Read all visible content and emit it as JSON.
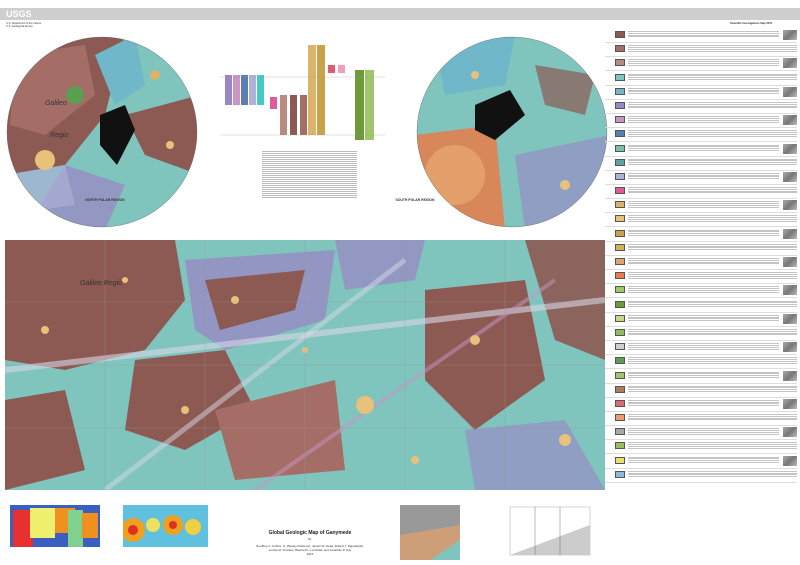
{
  "header": {
    "agency": "USGS",
    "department": "U.S. Department of the Interior",
    "survey": "U.S. Geological Survey",
    "series": "Scientific Investigations Map 3237"
  },
  "maps": {
    "north_polar_label": "NORTH POLAR REGION",
    "south_polar_label": "SOUTH POLAR REGION",
    "region_label_1": "Galileo",
    "region_label_2": "Regio",
    "main_region_label": "Galileo Regio"
  },
  "title_block": {
    "title": "Global Geologic Map of Ganymede",
    "by": "By",
    "authors_line1": "Geoffrey C. Collins, G. Wesley Patterson, James W. Head, Robert T. Pappalardo,",
    "authors_line2": "Louise M. Prockter, Baerbel K. Lucchitta, and Jonathan P. Kay",
    "year": "2014"
  },
  "colors": {
    "dark_terrain": "#8c5a52",
    "light_terrain": "#7fc4bd",
    "grooved": "#9a86c4",
    "crater": "#e8c27a",
    "palimpsest": "#e3a06a",
    "header_bar": "#cfcfcf"
  },
  "units": [
    {
      "color": "#8c5a52"
    },
    {
      "color": "#a46e66"
    },
    {
      "color": "#b98a7d"
    },
    {
      "color": "#7fc4bd"
    },
    {
      "color": "#6fb7c9"
    },
    {
      "color": "#9a86c4"
    },
    {
      "color": "#c895c4"
    },
    {
      "color": "#5b7fb3"
    },
    {
      "color": "#78c0a8"
    },
    {
      "color": "#5fa3a0"
    },
    {
      "color": "#b0b0d8"
    },
    {
      "color": "#e05a9a"
    },
    {
      "color": "#d9b46a"
    },
    {
      "color": "#e8c27a"
    },
    {
      "color": "#c9a24a"
    },
    {
      "color": "#d7b05a"
    },
    {
      "color": "#e3a06a"
    },
    {
      "color": "#e77d4a"
    },
    {
      "color": "#9ec66a"
    },
    {
      "color": "#6e9a3a"
    },
    {
      "color": "#c6d98a"
    },
    {
      "color": "#8cbf5a"
    },
    {
      "color": "#d0d0d0"
    },
    {
      "color": "#5a9e50"
    },
    {
      "color": "#a0c86a"
    },
    {
      "color": "#b07a60"
    },
    {
      "color": "#dc6a70"
    },
    {
      "color": "#f09a70"
    },
    {
      "color": "#a8a8a8"
    },
    {
      "color": "#98c05a"
    },
    {
      "color": "#e8e070"
    },
    {
      "color": "#90b8e0"
    }
  ]
}
